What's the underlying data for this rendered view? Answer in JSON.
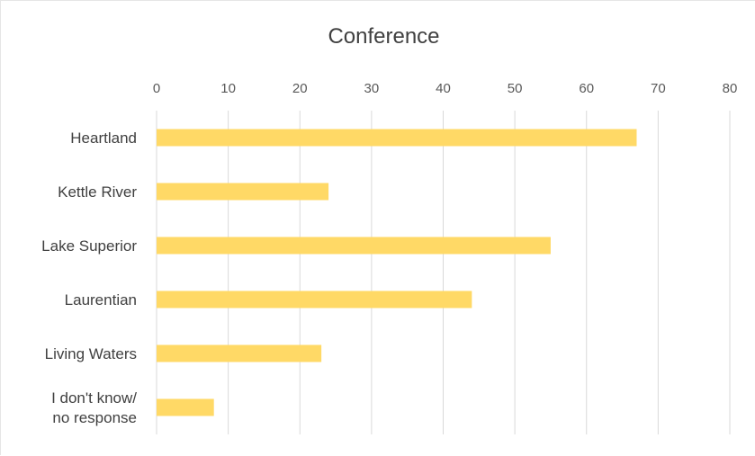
{
  "chart_data": {
    "type": "bar",
    "orientation": "horizontal",
    "title": "Conference",
    "categories": [
      "Heartland",
      "Kettle River",
      "Lake Superior",
      "Laurentian",
      "Living Waters",
      "I don't know/ no response"
    ],
    "category_lines": [
      [
        "Heartland"
      ],
      [
        "Kettle River"
      ],
      [
        "Lake Superior"
      ],
      [
        "Laurentian"
      ],
      [
        "Living Waters"
      ],
      [
        "I don't know/",
        "no response"
      ]
    ],
    "values": [
      67,
      24,
      55,
      44,
      23,
      8
    ],
    "xlabel": "",
    "ylabel": "",
    "xlim": [
      0,
      80
    ],
    "ticks": [
      0,
      10,
      20,
      30,
      40,
      50,
      60,
      70,
      80
    ],
    "axis_position": "top",
    "grid": true,
    "legend": "none",
    "colors": {
      "bar": "#FFD966",
      "grid": "#D9D9D9",
      "text": "#404040"
    }
  }
}
